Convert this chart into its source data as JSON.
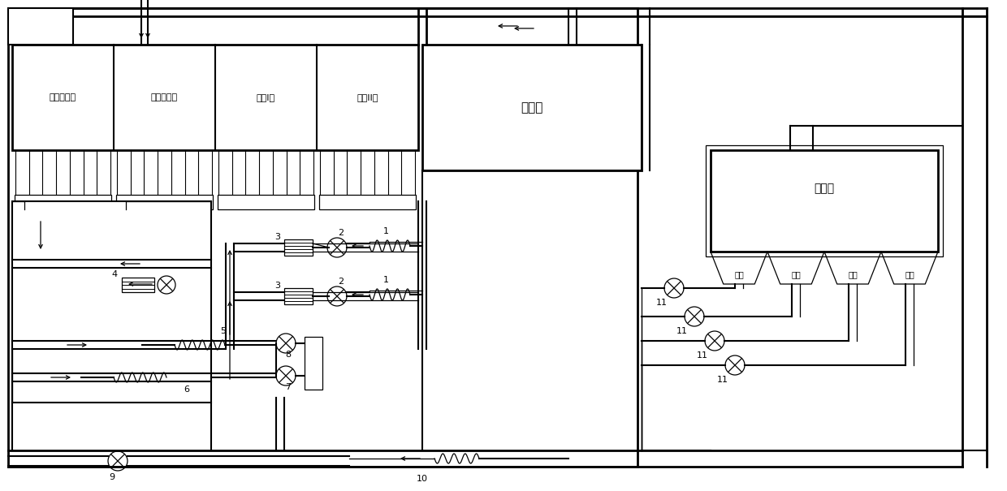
{
  "bg": "#ffffff",
  "sections": [
    "鼓风干燥段",
    "抽风干燥段",
    "预热I段",
    "预热II段"
  ],
  "rotary_kiln": "回转窑",
  "cooler": "环冷机",
  "cooler_secs": [
    "一段",
    "二段",
    "三段",
    "四段"
  ]
}
